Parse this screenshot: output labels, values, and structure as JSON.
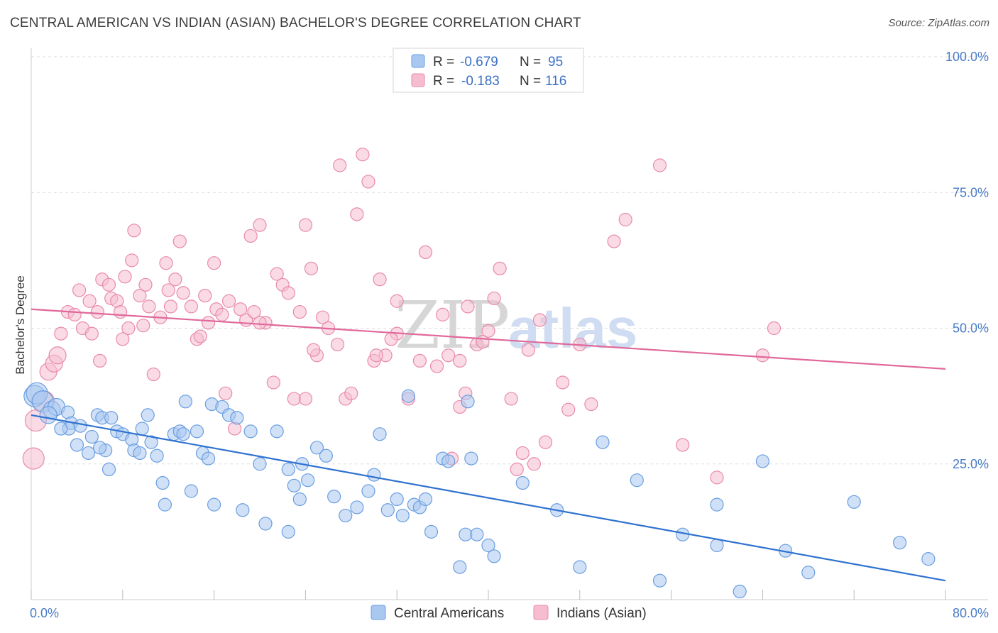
{
  "header": {
    "title": "CENTRAL AMERICAN VS INDIAN (ASIAN) BACHELOR'S DEGREE CORRELATION CHART",
    "source": "Source: ZipAtlas.com"
  },
  "watermark": {
    "zip": "ZIP",
    "atlas": "atlas"
  },
  "colors": {
    "blue_fill": "#a9c8f0",
    "blue_stroke": "#6a9ee0",
    "blue_line": "#2f72d0",
    "pink_fill": "#f6bdd0",
    "pink_stroke": "#e88aab",
    "pink_line": "#e0689a",
    "tick_text": "#4a7cc9",
    "grid": "#dddddd"
  },
  "legend": {
    "rows": [
      {
        "r_label": "R =",
        "r_value": "-0.679",
        "n_label": "N =",
        "n_value": "95"
      },
      {
        "r_label": "R =",
        "r_value": "-0.183",
        "n_label": "N =",
        "n_value": "116"
      }
    ]
  },
  "chart_data": {
    "type": "scatter",
    "ylabel": "Bachelor's Degree",
    "xlim": [
      0,
      80
    ],
    "ylim": [
      0,
      100
    ],
    "x_ticks": [
      "0.0%",
      "80.0%"
    ],
    "y_ticks": [
      {
        "value": 25,
        "label": "25.0%"
      },
      {
        "value": 50,
        "label": "50.0%"
      },
      {
        "value": 75,
        "label": "75.0%"
      },
      {
        "value": 100,
        "label": "100.0%"
      }
    ],
    "grid": true,
    "legend_placement": "top-center",
    "series": [
      {
        "name": "Central Americans",
        "color": "blue",
        "trend": {
          "x0": 0,
          "y0": 34.0,
          "x1": 80,
          "y1": 3.5
        },
        "points": [
          [
            0.3,
            37.5
          ],
          [
            0.5,
            38
          ],
          [
            1,
            36.5
          ],
          [
            1.8,
            35
          ],
          [
            2.2,
            35.5
          ],
          [
            1.5,
            34
          ],
          [
            3.2,
            34.5
          ],
          [
            3.5,
            32.5
          ],
          [
            3.3,
            31.5
          ],
          [
            5.8,
            34
          ],
          [
            2.6,
            31.5
          ],
          [
            4.3,
            32
          ],
          [
            5.3,
            30
          ],
          [
            4,
            28.5
          ],
          [
            6.2,
            33.5
          ],
          [
            7,
            33.5
          ],
          [
            6.5,
            27.5
          ],
          [
            6.8,
            24
          ],
          [
            5,
            27
          ],
          [
            6,
            28
          ],
          [
            7.5,
            31
          ],
          [
            8,
            30.5
          ],
          [
            8.8,
            29.5
          ],
          [
            9,
            27.5
          ],
          [
            9.5,
            27
          ],
          [
            9.7,
            31.5
          ],
          [
            10.2,
            34
          ],
          [
            10.5,
            29
          ],
          [
            11,
            26.5
          ],
          [
            11.5,
            21.5
          ],
          [
            12.5,
            30.5
          ],
          [
            13,
            31
          ],
          [
            13.3,
            30.5
          ],
          [
            14.5,
            31
          ],
          [
            15,
            27
          ],
          [
            15.5,
            26
          ],
          [
            15.8,
            36
          ],
          [
            16.7,
            35.5
          ],
          [
            17.3,
            34
          ],
          [
            18,
            33.5
          ],
          [
            16,
            17.5
          ],
          [
            11.7,
            17.5
          ],
          [
            13.5,
            36.5
          ],
          [
            14,
            20
          ],
          [
            18.5,
            16.5
          ],
          [
            19.2,
            31
          ],
          [
            20,
            25
          ],
          [
            21.5,
            31
          ],
          [
            22.5,
            24
          ],
          [
            23,
            21
          ],
          [
            23.7,
            25
          ],
          [
            23.5,
            18.5
          ],
          [
            24.2,
            22
          ],
          [
            25,
            28
          ],
          [
            25.8,
            26.5
          ],
          [
            26.5,
            19
          ],
          [
            27.5,
            15.5
          ],
          [
            28.5,
            17
          ],
          [
            29.5,
            20
          ],
          [
            30,
            23
          ],
          [
            30.5,
            30.5
          ],
          [
            31.2,
            16.5
          ],
          [
            32,
            18.5
          ],
          [
            32.5,
            15.5
          ],
          [
            33,
            37.5
          ],
          [
            33.5,
            17.5
          ],
          [
            34,
            17
          ],
          [
            34.5,
            18.5
          ],
          [
            35,
            12.5
          ],
          [
            36,
            26
          ],
          [
            36.5,
            25.5
          ],
          [
            38.5,
            26
          ],
          [
            38,
            12
          ],
          [
            39,
            12
          ],
          [
            40,
            10
          ],
          [
            43,
            21.5
          ],
          [
            46,
            16.5
          ],
          [
            48,
            6
          ],
          [
            50,
            29
          ],
          [
            53,
            22
          ],
          [
            55,
            3.5
          ],
          [
            57,
            12
          ],
          [
            60,
            17.5
          ],
          [
            60,
            10
          ],
          [
            62,
            1.5
          ],
          [
            64,
            25.5
          ],
          [
            66,
            9
          ],
          [
            68,
            5
          ],
          [
            72,
            18
          ],
          [
            76,
            10.5
          ],
          [
            78.5,
            7.5
          ],
          [
            38.2,
            36.5
          ],
          [
            37.5,
            6
          ],
          [
            40.5,
            8
          ],
          [
            22.5,
            12.5
          ],
          [
            20.5,
            14
          ]
        ]
      },
      {
        "name": "Indians (Asian)",
        "color": "pink",
        "trend": {
          "x0": 0,
          "y0": 53.5,
          "x1": 80,
          "y1": 42.5
        },
        "points": [
          [
            0.2,
            26
          ],
          [
            0.4,
            33
          ],
          [
            1.1,
            36.5
          ],
          [
            1.5,
            42
          ],
          [
            2,
            43.5
          ],
          [
            2.3,
            45
          ],
          [
            2.6,
            49
          ],
          [
            3.2,
            53
          ],
          [
            3.8,
            52.5
          ],
          [
            4.2,
            57
          ],
          [
            4.5,
            50
          ],
          [
            5.1,
            55
          ],
          [
            5.3,
            49
          ],
          [
            5.8,
            53
          ],
          [
            6.2,
            59
          ],
          [
            6.8,
            58
          ],
          [
            7,
            55.5
          ],
          [
            7.5,
            55
          ],
          [
            7.8,
            53
          ],
          [
            8.2,
            59.5
          ],
          [
            8.5,
            50
          ],
          [
            8.8,
            62.5
          ],
          [
            9,
            68
          ],
          [
            9.5,
            56
          ],
          [
            10,
            58
          ],
          [
            10.3,
            54
          ],
          [
            10.7,
            41.5
          ],
          [
            11.3,
            52
          ],
          [
            11.8,
            62
          ],
          [
            12.2,
            54
          ],
          [
            12.6,
            59
          ],
          [
            13,
            66
          ],
          [
            13.3,
            56.5
          ],
          [
            14,
            54
          ],
          [
            14.5,
            48
          ],
          [
            15.2,
            56
          ],
          [
            15.5,
            51
          ],
          [
            16,
            62
          ],
          [
            16.2,
            53.5
          ],
          [
            16.7,
            52.5
          ],
          [
            17.3,
            55
          ],
          [
            17.8,
            31.5
          ],
          [
            18.3,
            53.5
          ],
          [
            18.8,
            51.5
          ],
          [
            19.2,
            67
          ],
          [
            19.5,
            53
          ],
          [
            20,
            69
          ],
          [
            20.5,
            51
          ],
          [
            21.2,
            40
          ],
          [
            21.5,
            60
          ],
          [
            22,
            58
          ],
          [
            22.5,
            56.5
          ],
          [
            23,
            37
          ],
          [
            23.5,
            53
          ],
          [
            24,
            69
          ],
          [
            24.5,
            61
          ],
          [
            25,
            45
          ],
          [
            25.5,
            52
          ],
          [
            26,
            50
          ],
          [
            27,
            80
          ],
          [
            27.5,
            37
          ],
          [
            28.5,
            71
          ],
          [
            29,
            82
          ],
          [
            29.5,
            77
          ],
          [
            30,
            44
          ],
          [
            31,
            45
          ],
          [
            32,
            49
          ],
          [
            33,
            37
          ],
          [
            34.5,
            64
          ],
          [
            35.5,
            43
          ],
          [
            36,
            52.5
          ],
          [
            36.5,
            45
          ],
          [
            37.5,
            35.5
          ],
          [
            38,
            38
          ],
          [
            39,
            47
          ],
          [
            39.5,
            47.5
          ],
          [
            40,
            49.5
          ],
          [
            40.5,
            55.5
          ],
          [
            41,
            61
          ],
          [
            42,
            37
          ],
          [
            43,
            27
          ],
          [
            43.5,
            46
          ],
          [
            44.5,
            51.5
          ],
          [
            45,
            29
          ],
          [
            46.5,
            40
          ],
          [
            47,
            35
          ],
          [
            48,
            47
          ],
          [
            49,
            36
          ],
          [
            51,
            66
          ],
          [
            52,
            70
          ],
          [
            55,
            80
          ],
          [
            57,
            28.5
          ],
          [
            60,
            22.5
          ],
          [
            64,
            45
          ],
          [
            65,
            50
          ],
          [
            6,
            44
          ],
          [
            9.8,
            50.5
          ],
          [
            12,
            57
          ],
          [
            26.8,
            47
          ],
          [
            32,
            55
          ],
          [
            14.8,
            48.5
          ],
          [
            37.5,
            44
          ],
          [
            28,
            38
          ],
          [
            20,
            51
          ],
          [
            30.5,
            59
          ],
          [
            24,
            37
          ],
          [
            38.2,
            54
          ],
          [
            31.5,
            48
          ],
          [
            44,
            25
          ],
          [
            42.5,
            24
          ],
          [
            24.7,
            46
          ],
          [
            30.2,
            45
          ],
          [
            36.8,
            26
          ],
          [
            17,
            38
          ],
          [
            8,
            48
          ],
          [
            34,
            44
          ]
        ]
      }
    ]
  }
}
